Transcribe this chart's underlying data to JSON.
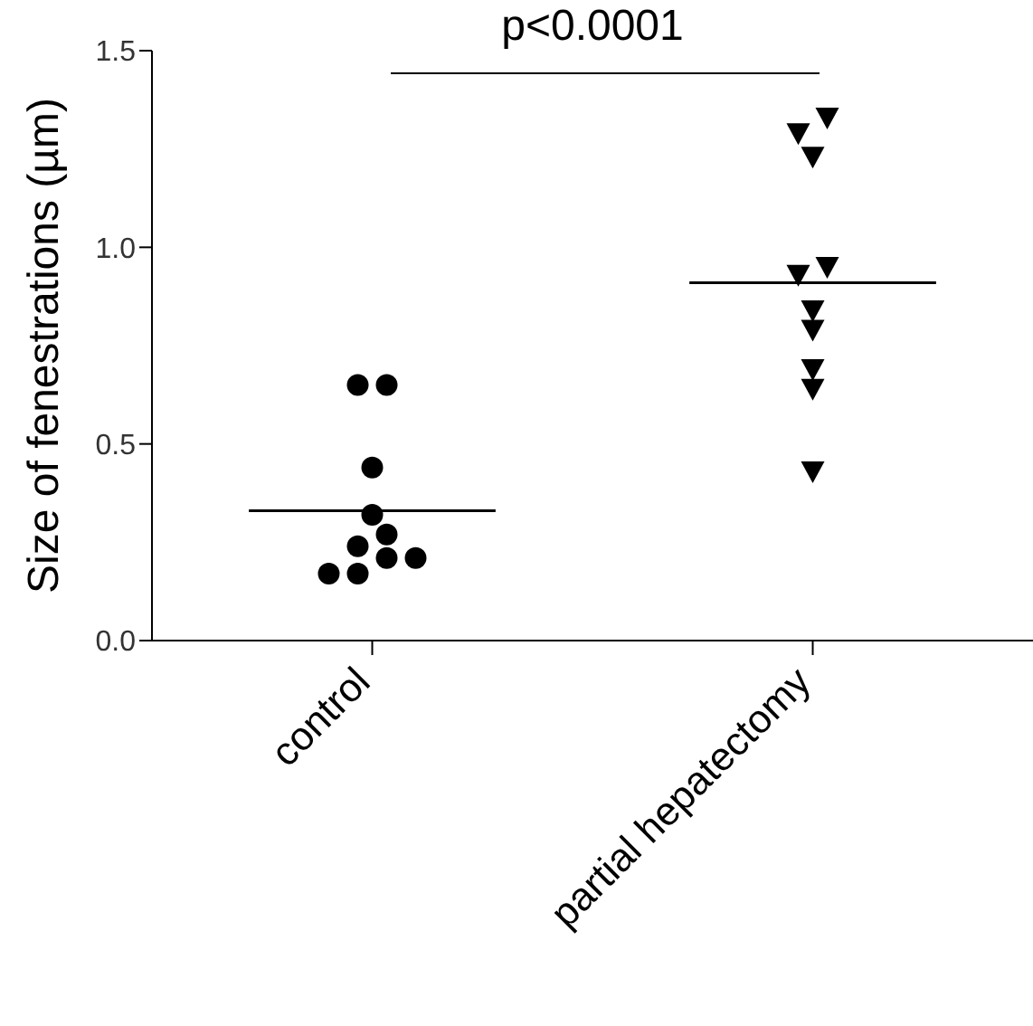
{
  "chart_data": {
    "type": "scatter",
    "ylabel": "Size of fenestrations (µm)",
    "categories": [
      "control",
      "partial hepatectomy"
    ],
    "series": [
      {
        "marker": "circle",
        "color": "#000000",
        "x": [
          "control",
          "control",
          "control",
          "control",
          "control",
          "control",
          "control",
          "control",
          "control",
          "control"
        ],
        "values": [
          0.65,
          0.65,
          0.44,
          0.32,
          0.27,
          0.24,
          0.21,
          0.21,
          0.17,
          0.17
        ]
      },
      {
        "marker": "triangle",
        "color": "#000000",
        "x": [
          "partial hepatectomy",
          "partial hepatectomy",
          "partial hepatectomy",
          "partial hepatectomy",
          "partial hepatectomy",
          "partial hepatectomy",
          "partial hepatectomy",
          "partial hepatectomy",
          "partial hepatectomy",
          "partial hepatectomy"
        ],
        "values": [
          1.33,
          1.29,
          1.23,
          0.95,
          0.93,
          0.84,
          0.79,
          0.69,
          0.64,
          0.43
        ]
      }
    ],
    "ref_lines": [
      {
        "axis": "y",
        "value": 0.33,
        "color": "#000000"
      },
      {
        "axis": "y",
        "value": 0.91,
        "color": "#000000"
      }
    ],
    "ylim": [
      0,
      1.5
    ],
    "yticks": [
      {
        "value": 0,
        "label": "0.0"
      },
      0.5,
      {
        "value": 1,
        "label": "1.0"
      },
      1.5
    ],
    "annotations": [
      "p<0.0001"
    ]
  }
}
